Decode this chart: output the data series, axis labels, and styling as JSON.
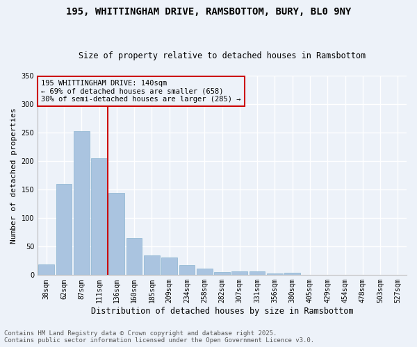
{
  "title1": "195, WHITTINGHAM DRIVE, RAMSBOTTOM, BURY, BL0 9NY",
  "title2": "Size of property relative to detached houses in Ramsbottom",
  "xlabel": "Distribution of detached houses by size in Ramsbottom",
  "ylabel": "Number of detached properties",
  "categories": [
    "38sqm",
    "62sqm",
    "87sqm",
    "111sqm",
    "136sqm",
    "160sqm",
    "185sqm",
    "209sqm",
    "234sqm",
    "258sqm",
    "282sqm",
    "307sqm",
    "331sqm",
    "356sqm",
    "380sqm",
    "405sqm",
    "429sqm",
    "454sqm",
    "478sqm",
    "503sqm",
    "527sqm"
  ],
  "values": [
    19,
    160,
    252,
    205,
    144,
    65,
    35,
    31,
    18,
    11,
    5,
    7,
    7,
    3,
    4,
    0,
    0,
    0,
    0,
    0,
    1
  ],
  "bar_color": "#aac4e0",
  "bar_edge_color": "#8ab4d0",
  "bg_color": "#edf2f9",
  "grid_color": "#ffffff",
  "vline_x_index": 4,
  "vline_color": "#cc0000",
  "annotation_text": "195 WHITTINGHAM DRIVE: 140sqm\n← 69% of detached houses are smaller (658)\n30% of semi-detached houses are larger (285) →",
  "annotation_box_color": "#cc0000",
  "footer1": "Contains HM Land Registry data © Crown copyright and database right 2025.",
  "footer2": "Contains public sector information licensed under the Open Government Licence v3.0.",
  "ylim": [
    0,
    350
  ],
  "yticks": [
    0,
    50,
    100,
    150,
    200,
    250,
    300,
    350
  ],
  "title1_fontsize": 10,
  "title2_fontsize": 8.5,
  "xlabel_fontsize": 8.5,
  "ylabel_fontsize": 8,
  "tick_fontsize": 7,
  "footer_fontsize": 6.5,
  "annot_fontsize": 7.5
}
